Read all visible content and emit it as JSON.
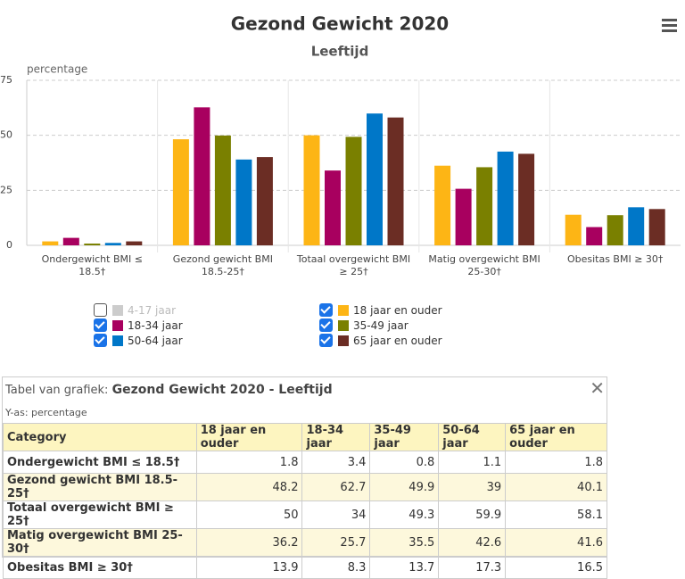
{
  "chart_data": {
    "type": "bar",
    "title": "Gezond Gewicht 2020",
    "subtitle": "Leeftijd",
    "y_label": "percentage",
    "categories": [
      "Ondergewicht BMI ≤ 18.5†",
      "Gezond gewicht BMI 18.5-25†",
      "Totaal overgewicht BMI ≥ 25†",
      "Matig overgewicht BMI 25-30†",
      "Obesitas BMI ≥ 30†"
    ],
    "series": [
      {
        "name": "4-17 jaar",
        "color": "#cccccc",
        "visible": false,
        "values": [
          null,
          null,
          null,
          null,
          null
        ]
      },
      {
        "name": "18 jaar en ouder",
        "color": "#fdb515",
        "visible": true,
        "values": [
          1.8,
          48.2,
          50,
          36.2,
          13.9
        ]
      },
      {
        "name": "18-34 jaar",
        "color": "#a8005f",
        "visible": true,
        "values": [
          3.4,
          62.7,
          34,
          25.7,
          8.3
        ]
      },
      {
        "name": "35-49 jaar",
        "color": "#7a8000",
        "visible": true,
        "values": [
          0.8,
          49.9,
          49.3,
          35.5,
          13.7
        ]
      },
      {
        "name": "50-64 jaar",
        "color": "#0077c8",
        "visible": true,
        "values": [
          1.1,
          39,
          59.9,
          42.6,
          17.3
        ]
      },
      {
        "name": "65 jaar en ouder",
        "color": "#6b2d24",
        "visible": true,
        "values": [
          1.8,
          40.1,
          58.1,
          41.6,
          16.5
        ]
      }
    ],
    "ylim": [
      0,
      75
    ],
    "yticks": [
      0,
      25,
      50,
      75
    ],
    "grid": true
  },
  "table": {
    "caption_prefix": "Tabel van grafiek:",
    "caption": "Gezond Gewicht 2020 - Leeftijd",
    "subtitle": "Y-as: percentage",
    "columns": [
      "Category",
      "18 jaar en ouder",
      "18-34 jaar",
      "35-49 jaar",
      "50-64 jaar",
      "65 jaar en ouder"
    ],
    "rows": [
      [
        "Ondergewicht BMI  ≤ 18.5†",
        "1.8",
        "3.4",
        "0.8",
        "1.1",
        "1.8"
      ],
      [
        "Gezond gewicht BMI 18.5-25†",
        "48.2",
        "62.7",
        "49.9",
        "39",
        "40.1"
      ],
      [
        "Totaal overgewicht BMI ≥ 25†",
        "50",
        "34",
        "49.3",
        "59.9",
        "58.1"
      ],
      [
        "Matig overgewicht BMI 25-30†",
        "36.2",
        "25.7",
        "35.5",
        "42.6",
        "41.6"
      ],
      [
        "Obesitas BMI ≥ 30†",
        "13.9",
        "8.3",
        "13.7",
        "17.3",
        "16.5"
      ]
    ]
  }
}
